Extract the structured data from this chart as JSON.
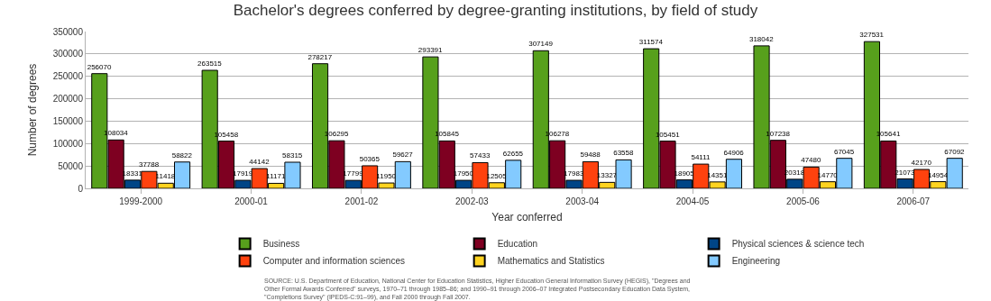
{
  "chart_data": {
    "type": "bar",
    "title": "Bachelor's degrees conferred by degree-granting institutions, by field of study",
    "xlabel": "Year conferred",
    "ylabel": "Number of degrees",
    "categories": [
      "1999-2000",
      "2000-01",
      "2001-02",
      "2002-03",
      "2003-04",
      "2004-05",
      "2005-06",
      "2006-07"
    ],
    "series": [
      {
        "name": "Business",
        "color": "#57a01c",
        "values": [
          256070,
          263515,
          278217,
          293391,
          307149,
          311574,
          318042,
          327531
        ]
      },
      {
        "name": "Education",
        "color": "#7e0021",
        "values": [
          108034,
          105458,
          106295,
          105845,
          106278,
          105451,
          107238,
          105641
        ]
      },
      {
        "name": "Physical sciences & science tech",
        "color": "#004586",
        "values": [
          18331,
          17919,
          17799,
          17950,
          17983,
          18905,
          20318,
          21073
        ]
      },
      {
        "name": "Computer and information sciences",
        "color": "#ff420e",
        "values": [
          37788,
          44142,
          50365,
          57433,
          59488,
          54111,
          47480,
          42170
        ]
      },
      {
        "name": "Mathematics and Statistics",
        "color": "#ffd320",
        "values": [
          11418,
          11171,
          11950,
          12505,
          13327,
          14351,
          14770,
          14954
        ]
      },
      {
        "name": "Engineering",
        "color": "#83caff",
        "values": [
          58822,
          58315,
          59627,
          62655,
          63558,
          64906,
          67045,
          67092
        ]
      }
    ],
    "ylim": [
      0,
      350000
    ],
    "yticks": [
      0,
      50000,
      100000,
      150000,
      200000,
      250000,
      300000,
      350000
    ],
    "grid": "y",
    "legend": "bottom",
    "data_labels": true,
    "annotations": [
      "SOURCE: U.S. Department of Education, National Center for Education Statistics, Higher Education General Information Survey (HEGIS), \"Degrees and Other Formal Awards Conferred\" surveys, 1970–71 through 1985–86; and 1990–91 through 2006–07 Integrated Postsecondary Education Data System, \"Completions Survey\" (IPEDS-C:91–99), and Fall 2000 through Fall 2007."
    ]
  }
}
